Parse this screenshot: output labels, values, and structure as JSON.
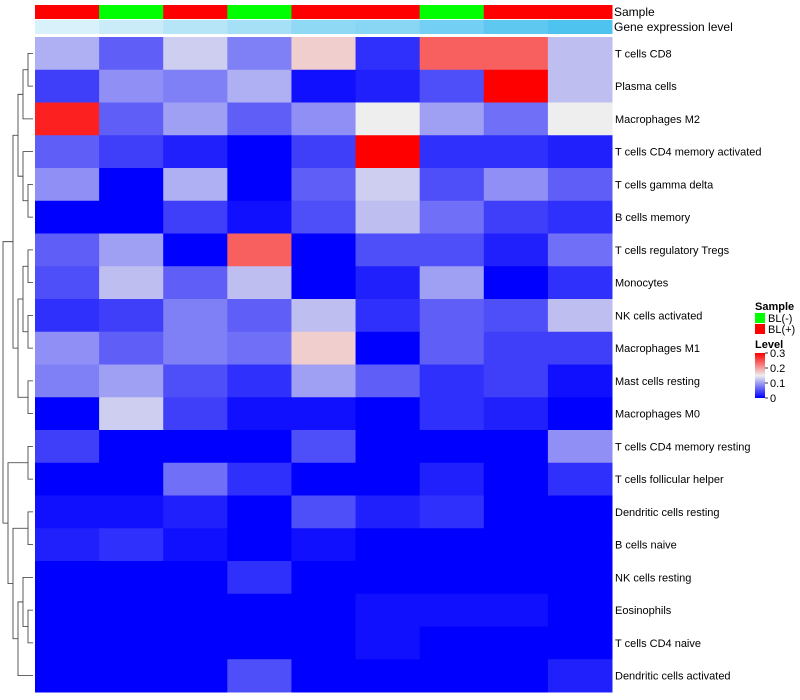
{
  "chart_data": {
    "type": "heatmap",
    "annotations": {
      "sample": {
        "title": "Sample",
        "values": [
          "BL(+)",
          "BL(-)",
          "BL(+)",
          "BL(-)",
          "BL(+)",
          "BL(+)",
          "BL(-)",
          "BL(+)",
          "BL(+)"
        ]
      },
      "gene_expression_level": {
        "title": "Gene expression level",
        "values": [
          0.05,
          0.15,
          0.3,
          0.4,
          0.55,
          0.6,
          0.75,
          0.9,
          1.0
        ]
      }
    },
    "rows": [
      "T cells CD8",
      "Plasma cells",
      "Macrophages M2",
      "T cells CD4 memory activated",
      "T cells gamma delta",
      "B cells memory",
      "T cells regulatory  Tregs",
      "Monocytes",
      "NK cells activated",
      "Macrophages M1",
      "Mast cells resting",
      "Macrophages M0",
      "T cells CD4 memory resting",
      "T cells follicular helper",
      "Dendritic cells resting",
      "B cells naive",
      "NK cells resting",
      "Eosinophils",
      "T cells CD4 naive",
      "Dendritic cells activated"
    ],
    "values": [
      [
        0.11,
        0.06,
        0.13,
        0.08,
        0.17,
        0.03,
        0.24,
        0.24,
        0.12
      ],
      [
        0.04,
        0.09,
        0.08,
        0.11,
        0.01,
        0.02,
        0.05,
        0.3,
        0.12
      ],
      [
        0.28,
        0.06,
        0.1,
        0.06,
        0.09,
        0.15,
        0.1,
        0.07,
        0.15
      ],
      [
        0.06,
        0.04,
        0.02,
        0.0,
        0.04,
        0.3,
        0.03,
        0.03,
        0.02
      ],
      [
        0.09,
        0.0,
        0.11,
        0.0,
        0.06,
        0.13,
        0.05,
        0.09,
        0.06
      ],
      [
        0.0,
        0.0,
        0.04,
        0.01,
        0.05,
        0.12,
        0.07,
        0.04,
        0.03
      ],
      [
        0.06,
        0.1,
        0.0,
        0.24,
        0.0,
        0.05,
        0.05,
        0.02,
        0.07
      ],
      [
        0.05,
        0.12,
        0.06,
        0.12,
        0.0,
        0.02,
        0.1,
        0.0,
        0.03
      ],
      [
        0.03,
        0.04,
        0.08,
        0.06,
        0.12,
        0.03,
        0.06,
        0.05,
        0.12
      ],
      [
        0.09,
        0.06,
        0.08,
        0.07,
        0.17,
        0.0,
        0.06,
        0.04,
        0.04
      ],
      [
        0.08,
        0.1,
        0.05,
        0.03,
        0.1,
        0.06,
        0.03,
        0.04,
        0.01
      ],
      [
        0.0,
        0.13,
        0.04,
        0.01,
        0.01,
        0.0,
        0.03,
        0.02,
        0.0
      ],
      [
        0.04,
        0.0,
        0.0,
        0.0,
        0.05,
        0.0,
        0.0,
        0.0,
        0.09
      ],
      [
        0.0,
        0.0,
        0.07,
        0.03,
        0.0,
        0.0,
        0.02,
        0.0,
        0.03
      ],
      [
        0.01,
        0.01,
        0.02,
        0.0,
        0.05,
        0.02,
        0.03,
        0.0,
        0.0
      ],
      [
        0.02,
        0.03,
        0.01,
        0.0,
        0.01,
        0.0,
        0.0,
        0.0,
        0.0
      ],
      [
        0.0,
        0.0,
        0.0,
        0.03,
        0.0,
        0.0,
        0.0,
        0.0,
        0.0
      ],
      [
        0.0,
        0.0,
        0.0,
        0.0,
        0.0,
        0.01,
        0.01,
        0.01,
        0.0
      ],
      [
        0.0,
        0.0,
        0.0,
        0.0,
        0.0,
        0.01,
        0.0,
        0.0,
        0.0
      ],
      [
        0.0,
        0.0,
        0.0,
        0.05,
        0.0,
        0.0,
        0.0,
        0.0,
        0.02
      ]
    ],
    "color_scale": {
      "min": 0,
      "mid": 0.15,
      "max": 0.3,
      "low_color": "#0000ff",
      "mid_color": "#eeeeee",
      "high_color": "#ff0000"
    },
    "annotation_colors": {
      "sample": {
        "BL(-)": "#00ff00",
        "BL(+)": "#ff0000"
      },
      "gene_expression_level": {
        "low": "#e0f3fa",
        "high": "#4fc3f0"
      }
    },
    "legend": {
      "position": "right",
      "sample_title": "Sample",
      "sample_entries": [
        "BL(-)",
        "BL(+)"
      ],
      "level_title": "Level",
      "level_ticks": [
        "0.3",
        "0.2",
        "0.1",
        "0"
      ],
      "level_tick_values": [
        0.3,
        0.2,
        0.1,
        0
      ]
    },
    "row_dendrogram": true
  }
}
